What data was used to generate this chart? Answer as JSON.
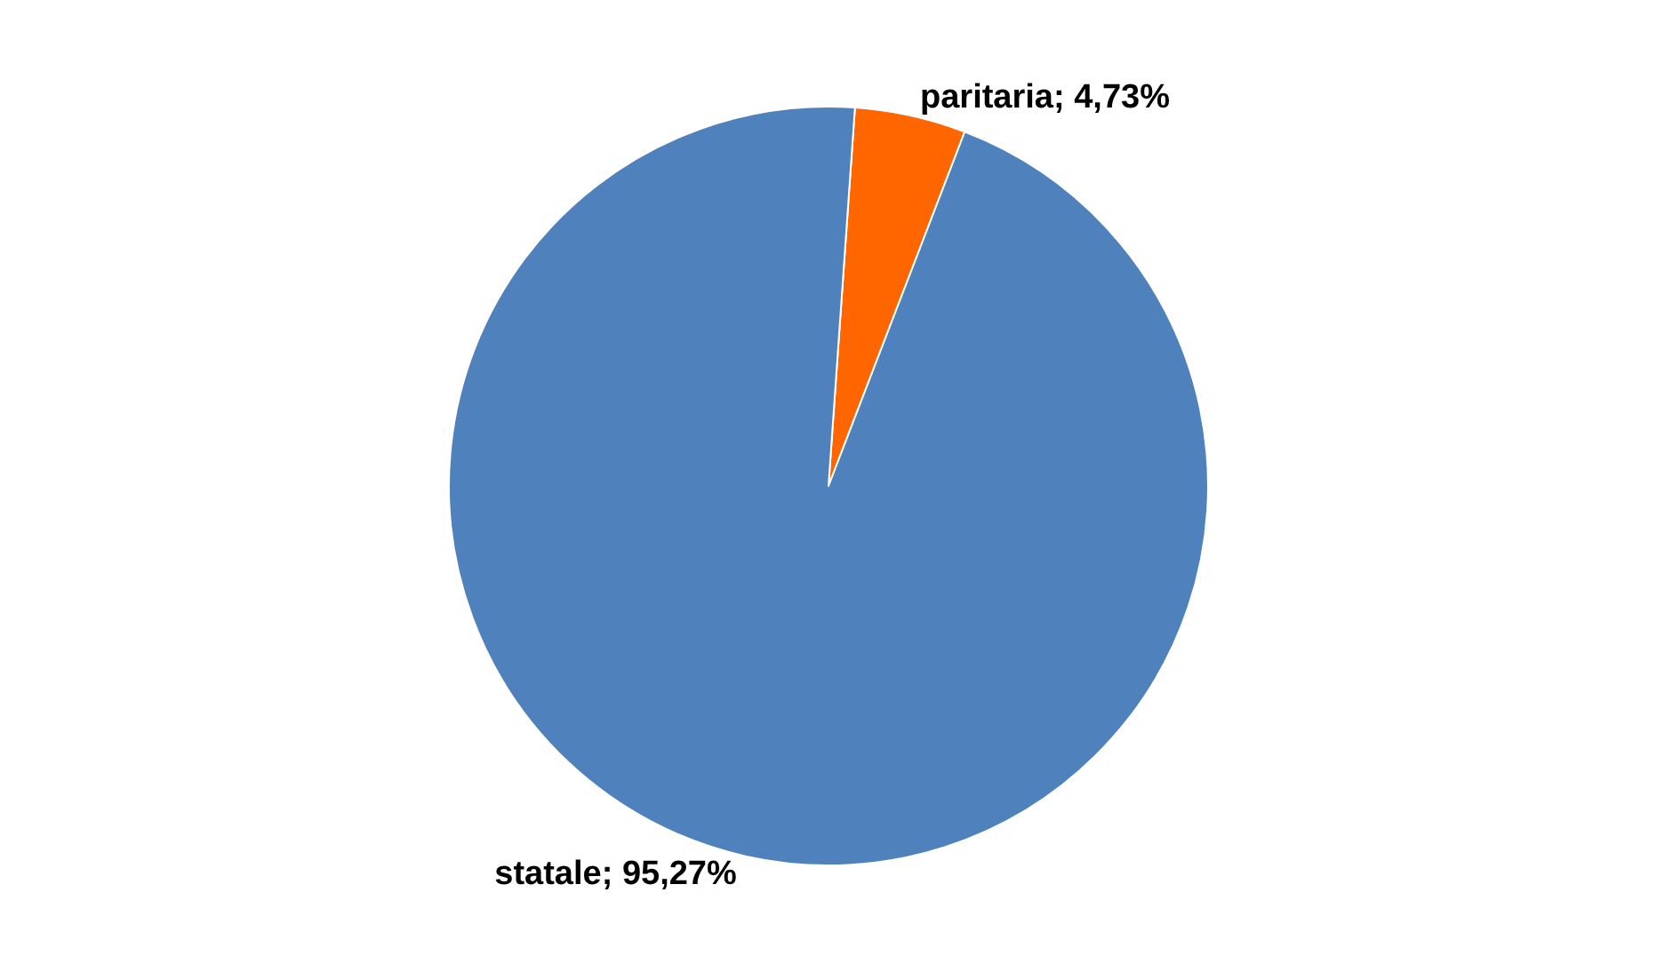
{
  "chart_data": {
    "type": "pie",
    "categories": [
      "paritaria",
      "statale"
    ],
    "values": [
      4.73,
      95.27
    ],
    "colors": [
      "#ff6600",
      "#4f81bd"
    ],
    "value_labels": [
      "4,73%",
      "95,27%"
    ],
    "legend": false
  }
}
